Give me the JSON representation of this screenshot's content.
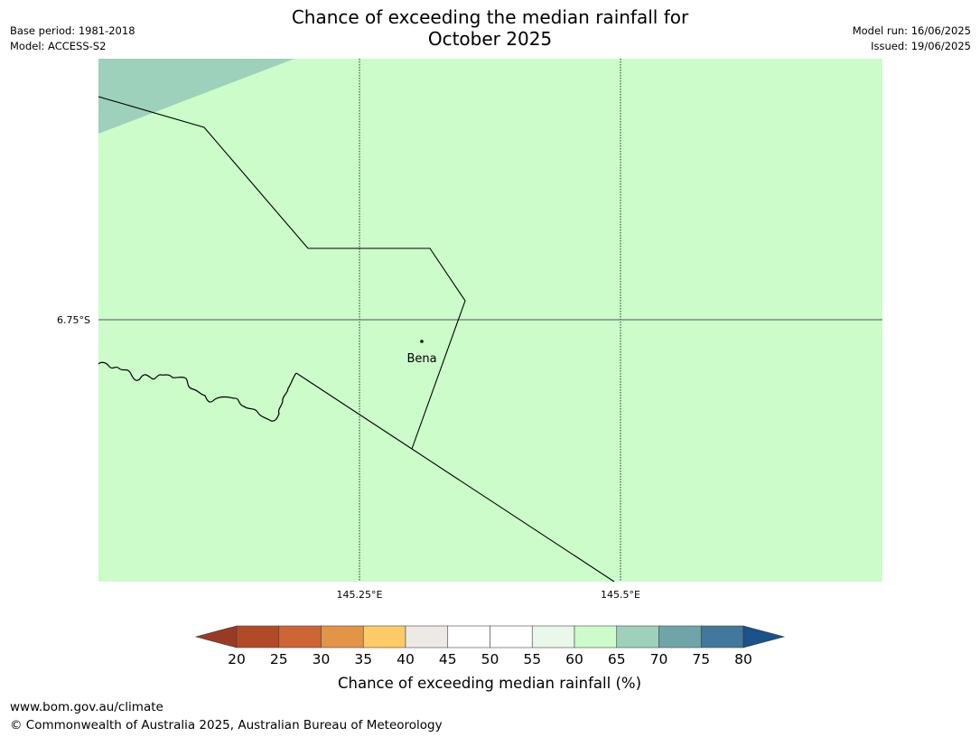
{
  "header": {
    "title_line1": "Chance of exceeding the median rainfall for",
    "title_line2": "October 2025",
    "base_period": "Base period: 1981-2018",
    "model": "Model: ACCESS-S2",
    "model_run": "Model run: 16/06/2025",
    "issued": "Issued: 19/06/2025"
  },
  "map": {
    "lat_labels": [
      "6.75°S"
    ],
    "lon_labels": [
      "145.25°E",
      "145.5°E"
    ],
    "place": {
      "name": "Bena"
    },
    "fill_colors": {
      "main": "#cbfcca",
      "upper_left": "#9dd1bc"
    },
    "region_values": {
      "main": "60–65",
      "upper_left": "65–70"
    }
  },
  "colorbar": {
    "label": "Chance of exceeding median rainfall (%)",
    "ticks": [
      "20",
      "25",
      "30",
      "35",
      "40",
      "45",
      "50",
      "55",
      "60",
      "65",
      "70",
      "75",
      "80"
    ],
    "low_extend_color": "#9b3a24",
    "high_extend_color": "#1b5289",
    "colors": [
      "#b34a27",
      "#cd6535",
      "#e39447",
      "#fecb68",
      "#ede9e5",
      "#ffffff",
      "#ffffff",
      "#eaf7eb",
      "#cbfcca",
      "#9dd1bc",
      "#6fa5a9",
      "#41789b"
    ]
  },
  "footer": {
    "url": "www.bom.gov.au/climate",
    "copyright": "© Commonwealth of Australia 2025, Australian Bureau of Meteorology"
  }
}
